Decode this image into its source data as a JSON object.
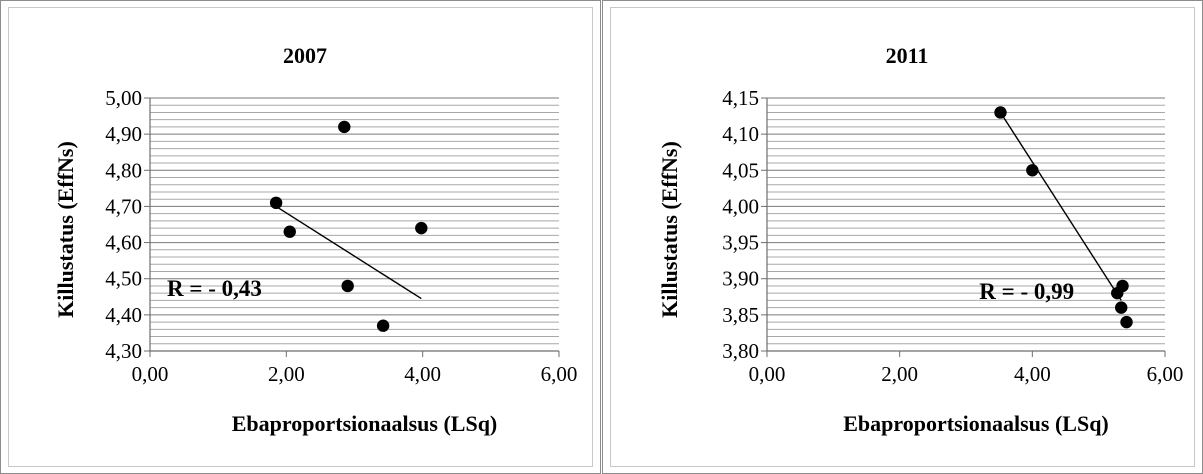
{
  "chart_data": [
    {
      "type": "scatter",
      "title": "2007",
      "xlabel": "Ebaproportsionaalsus (LSq)",
      "ylabel": "Killustatus (EffNs)",
      "xlim": [
        0,
        6
      ],
      "ylim": [
        4.3,
        5.0
      ],
      "x_ticks": [
        "0,00",
        "2,00",
        "4,00",
        "6,00"
      ],
      "y_ticks": [
        "4,30",
        "4,40",
        "4,50",
        "4,60",
        "4,70",
        "4,80",
        "4,90",
        "5,00"
      ],
      "x_tick_values": [
        0,
        2,
        4,
        6
      ],
      "y_tick_values": [
        4.3,
        4.4,
        4.5,
        4.6,
        4.7,
        4.8,
        4.9,
        5.0
      ],
      "minor_grid_step": 0.02,
      "grid": true,
      "points": [
        {
          "x": 1.85,
          "y": 4.71
        },
        {
          "x": 2.05,
          "y": 4.63
        },
        {
          "x": 2.85,
          "y": 4.92
        },
        {
          "x": 2.9,
          "y": 4.48
        },
        {
          "x": 3.42,
          "y": 4.37
        },
        {
          "x": 3.98,
          "y": 4.64
        }
      ],
      "trendline": {
        "x": [
          1.85,
          3.98
        ],
        "y": [
          4.7,
          4.445
        ]
      },
      "annotation": {
        "text": "R = - 0,43",
        "x": 0.25,
        "y": 4.475
      }
    },
    {
      "type": "scatter",
      "title": "2011",
      "xlabel": "Ebaproportsionaalsus (LSq)",
      "ylabel": "Killustatus (EffNs)",
      "xlim": [
        0,
        6
      ],
      "ylim": [
        3.8,
        4.15
      ],
      "x_ticks": [
        "0,00",
        "2,00",
        "4,00",
        "6,00"
      ],
      "y_ticks": [
        "3,80",
        "3,85",
        "3,90",
        "3,95",
        "4,00",
        "4,05",
        "4,10",
        "4,15"
      ],
      "x_tick_values": [
        0,
        2,
        4,
        6
      ],
      "y_tick_values": [
        3.8,
        3.85,
        3.9,
        3.95,
        4.0,
        4.05,
        4.1,
        4.15
      ],
      "minor_grid_step": 0.01,
      "grid": true,
      "points": [
        {
          "x": 3.52,
          "y": 4.13
        },
        {
          "x": 4.0,
          "y": 4.05
        },
        {
          "x": 5.28,
          "y": 3.88
        },
        {
          "x": 5.36,
          "y": 3.89
        },
        {
          "x": 5.34,
          "y": 3.86
        },
        {
          "x": 5.42,
          "y": 3.84
        }
      ],
      "trendline": {
        "x": [
          3.52,
          5.34
        ],
        "y": [
          4.13,
          3.87
        ]
      },
      "annotation": {
        "text": "R = - 0,99",
        "x": 3.2,
        "y": 3.883
      }
    }
  ]
}
